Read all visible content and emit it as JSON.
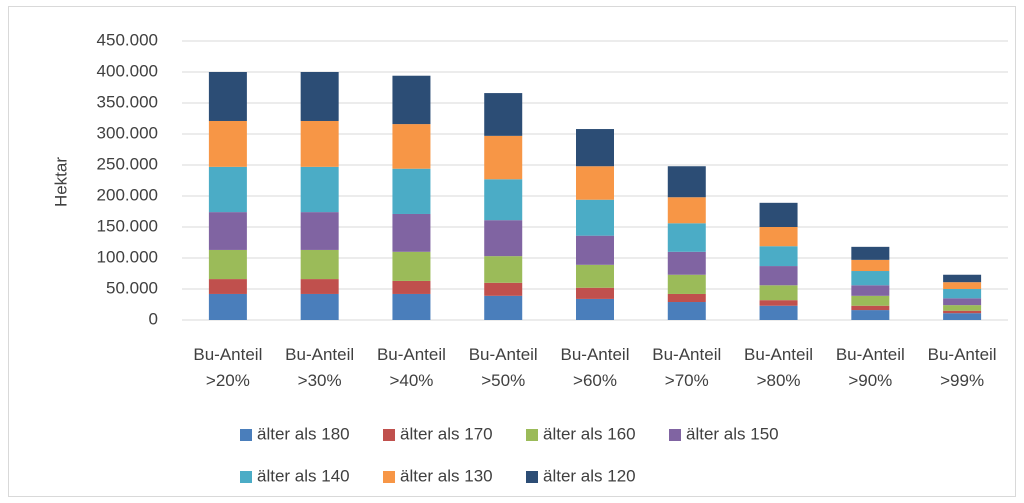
{
  "chart_data": {
    "type": "stacked_bar",
    "y_label": "Hektar",
    "categories": [
      "Bu-Anteil >20%",
      "Bu-Anteil >30%",
      "Bu-Anteil >40%",
      "Bu-Anteil >50%",
      "Bu-Anteil >60%",
      "Bu-Anteil >70%",
      "Bu-Anteil >80%",
      "Bu-Anteil >90%",
      "Bu-Anteil >99%"
    ],
    "series": [
      {
        "name": "älter als 180",
        "color": "#4a7ebb",
        "values": [
          42000,
          42000,
          42000,
          39000,
          34000,
          29000,
          23000,
          16000,
          11000
        ]
      },
      {
        "name": "älter als 170",
        "color": "#c0504d",
        "values": [
          24000,
          24000,
          21000,
          21000,
          18000,
          13000,
          9000,
          7000,
          4000
        ]
      },
      {
        "name": "älter als 160",
        "color": "#9bbb59",
        "values": [
          47000,
          47000,
          47000,
          43000,
          37000,
          31000,
          24000,
          16000,
          9000
        ]
      },
      {
        "name": "älter als 150",
        "color": "#8064a2",
        "values": [
          61000,
          61000,
          61000,
          58000,
          47000,
          37000,
          31000,
          17000,
          11000
        ]
      },
      {
        "name": "älter als 140",
        "color": "#4bacc6",
        "values": [
          73000,
          73000,
          73000,
          66000,
          58000,
          46000,
          32000,
          23000,
          15000
        ]
      },
      {
        "name": "älter als 130",
        "color": "#f79646",
        "values": [
          74000,
          74000,
          72000,
          70000,
          54000,
          42000,
          31000,
          18000,
          11000
        ]
      },
      {
        "name": "älter als 120",
        "color": "#2c4d75",
        "values": [
          79000,
          79000,
          78000,
          69000,
          60000,
          50000,
          39000,
          21000,
          12000
        ]
      }
    ],
    "ylim": [
      0,
      450000
    ],
    "yticks": [
      0,
      {
        "value": 50000,
        "label": "50.000"
      },
      {
        "value": 100000,
        "label": "100.000"
      },
      {
        "value": 150000,
        "label": "150.000"
      },
      {
        "value": 200000,
        "label": "200.000"
      },
      {
        "value": 250000,
        "label": "250.000"
      },
      {
        "value": 300000,
        "label": "300.000"
      },
      {
        "value": 350000,
        "label": "350.000"
      },
      {
        "value": 400000,
        "label": "400.000"
      },
      {
        "value": 450000,
        "label": "450.000"
      }
    ],
    "grid": true,
    "legend": "bottom"
  }
}
